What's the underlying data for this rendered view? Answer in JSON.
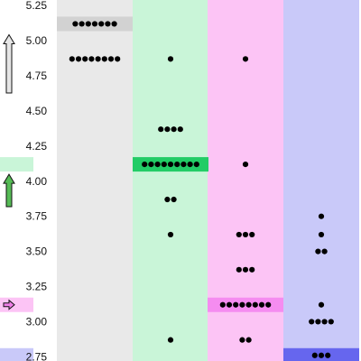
{
  "chart_data": {
    "type": "scatter",
    "title": "",
    "xlabel": "",
    "ylabel": "",
    "ylim": [
      2.72,
      5.29
    ],
    "yticks": [
      "5.25",
      "5.00",
      "4.75",
      "4.50",
      "4.25",
      "4.00",
      "3.75",
      "3.50",
      "3.25",
      "3.00",
      "2.75"
    ],
    "grid": false,
    "legend": "none",
    "series": [
      {
        "color": "#e9e9e9",
        "highlight_color": "#d2d2d2",
        "highlight_value": 5.12,
        "arrow": {
          "type": "outline-up",
          "value": 5.12
        },
        "points": [
          {
            "y": 5.12,
            "n": 7
          },
          {
            "y": 4.87,
            "n": 8
          }
        ]
      },
      {
        "color": "#c9f5d8",
        "highlight_color": "#22cc66",
        "highlight_value": 4.12,
        "arrow": {
          "type": "green-up",
          "value": 4.12
        },
        "points": [
          {
            "y": 4.87,
            "n": 1
          },
          {
            "y": 4.37,
            "n": 4
          },
          {
            "y": 4.12,
            "n": 9
          },
          {
            "y": 3.87,
            "n": 2
          },
          {
            "y": 3.62,
            "n": 1
          },
          {
            "y": 2.87,
            "n": 1
          }
        ]
      },
      {
        "color": "#fcc4f5",
        "highlight_color": "#f58cf0",
        "highlight_value": 3.12,
        "arrow": {
          "type": "pink-right",
          "value": 3.12
        },
        "points": [
          {
            "y": 4.87,
            "n": 1
          },
          {
            "y": 4.12,
            "n": 1
          },
          {
            "y": 3.62,
            "n": 3
          },
          {
            "y": 3.37,
            "n": 3
          },
          {
            "y": 3.12,
            "n": 8
          },
          {
            "y": 2.87,
            "n": 2
          }
        ]
      },
      {
        "color": "#c9c9f9",
        "highlight_color": "#6666ee",
        "highlight_value": 2.76,
        "arrow": null,
        "points": [
          {
            "y": 3.75,
            "n": 1
          },
          {
            "y": 3.62,
            "n": 1
          },
          {
            "y": 3.5,
            "n": 2
          },
          {
            "y": 3.12,
            "n": 1
          },
          {
            "y": 3.0,
            "n": 4
          },
          {
            "y": 2.76,
            "n": 3
          }
        ]
      }
    ]
  }
}
